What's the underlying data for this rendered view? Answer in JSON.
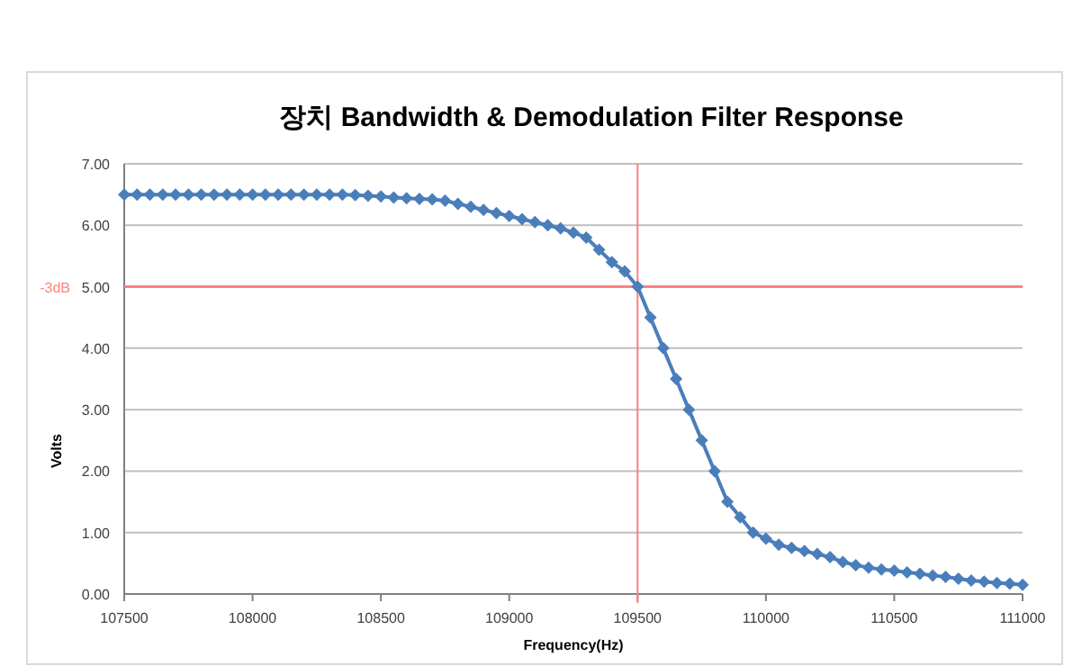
{
  "chart_data": {
    "type": "line",
    "title": "장치 Bandwidth & Demodulation Filter Response",
    "xlabel": "Frequency(Hz)",
    "ylabel": "Volts",
    "x": [
      107500,
      107550,
      107600,
      107650,
      107700,
      107750,
      107800,
      107850,
      107900,
      107950,
      108000,
      108050,
      108100,
      108150,
      108200,
      108250,
      108300,
      108350,
      108400,
      108450,
      108500,
      108550,
      108600,
      108650,
      108700,
      108750,
      108800,
      108850,
      108900,
      108950,
      109000,
      109050,
      109100,
      109150,
      109200,
      109250,
      109300,
      109350,
      109400,
      109450,
      109500,
      109550,
      109600,
      109650,
      109700,
      109750,
      109800,
      109850,
      109900,
      109950,
      110000,
      110050,
      110100,
      110150,
      110200,
      110250,
      110300,
      110350,
      110400,
      110450,
      110500,
      110550,
      110600,
      110650,
      110700,
      110750,
      110800,
      110850,
      110900,
      110950,
      111000
    ],
    "series": [
      {
        "color": "#4a7ebb",
        "values": [
          6.5,
          6.5,
          6.5,
          6.5,
          6.5,
          6.5,
          6.5,
          6.5,
          6.5,
          6.5,
          6.5,
          6.5,
          6.5,
          6.5,
          6.5,
          6.5,
          6.5,
          6.5,
          6.49,
          6.48,
          6.47,
          6.45,
          6.44,
          6.43,
          6.42,
          6.4,
          6.35,
          6.3,
          6.25,
          6.2,
          6.15,
          6.1,
          6.05,
          6.0,
          5.95,
          5.88,
          5.8,
          5.6,
          5.4,
          5.25,
          5.0,
          4.5,
          4.0,
          3.5,
          3.0,
          2.5,
          2.0,
          1.5,
          1.25,
          1.0,
          0.9,
          0.8,
          0.75,
          0.7,
          0.65,
          0.6,
          0.52,
          0.47,
          0.43,
          0.4,
          0.38,
          0.35,
          0.33,
          0.3,
          0.28,
          0.25,
          0.22,
          0.2,
          0.18,
          0.17,
          0.15
        ]
      }
    ],
    "xlim": [
      107500,
      111000
    ],
    "xticks": [
      107500,
      108000,
      108500,
      109000,
      109500,
      110000,
      110500,
      111000
    ],
    "ylim": [
      0,
      7
    ],
    "yticks": [
      {
        "value": 0,
        "label": "0.00"
      },
      {
        "value": 1,
        "label": "1.00"
      },
      {
        "value": 2,
        "label": "2.00"
      },
      {
        "value": 3,
        "label": "3.00"
      },
      {
        "value": 4,
        "label": "4.00"
      },
      {
        "value": 5,
        "label": "5.00"
      },
      {
        "value": 6,
        "label": "6.00"
      },
      {
        "value": 7,
        "label": "7.00"
      }
    ],
    "grid": "y",
    "marker": "diamond",
    "line_style": "solid",
    "ref_lines": [
      {
        "axis": "y",
        "value": 5,
        "label": "-3dB",
        "color": "#ff7f7f"
      },
      {
        "axis": "x",
        "value": 109500,
        "color": "#ff7f7f"
      }
    ]
  }
}
